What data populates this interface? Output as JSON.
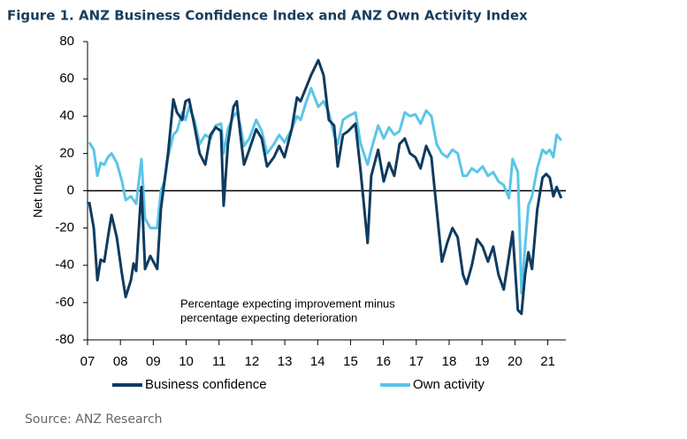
{
  "chart_data": {
    "type": "line",
    "title": "Figure 1.  ANZ Business Confidence Index and ANZ Own Activity Index",
    "ylabel": "Net Index",
    "annotation": [
      "Percentage expecting improvement minus",
      "percentage expecting deterioration"
    ],
    "source": "Source: ANZ Research",
    "x": [
      2007.05,
      2007.19,
      2007.3,
      2007.4,
      2007.51,
      2007.62,
      2007.73,
      2007.89,
      2008.05,
      2008.16,
      2008.32,
      2008.4,
      2008.48,
      2008.64,
      2008.75,
      2008.91,
      2009.12,
      2009.23,
      2009.34,
      2009.45,
      2009.61,
      2009.72,
      2009.88,
      2009.98,
      2010.09,
      2010.25,
      2010.41,
      2010.58,
      2010.74,
      2010.9,
      2011.06,
      2011.14,
      2011.27,
      2011.44,
      2011.54,
      2011.65,
      2011.76,
      2011.92,
      2012.13,
      2012.3,
      2012.46,
      2012.67,
      2012.83,
      2012.99,
      2013.21,
      2013.37,
      2013.48,
      2013.64,
      2013.8,
      2014.02,
      2014.18,
      2014.34,
      2014.5,
      2014.61,
      2014.77,
      2014.93,
      2015.15,
      2015.31,
      2015.52,
      2015.63,
      2015.84,
      2016.01,
      2016.17,
      2016.33,
      2016.49,
      2016.65,
      2016.81,
      2016.97,
      2017.13,
      2017.3,
      2017.46,
      2017.62,
      2017.78,
      2017.94,
      2018.1,
      2018.26,
      2018.42,
      2018.53,
      2018.69,
      2018.85,
      2019.02,
      2019.18,
      2019.34,
      2019.5,
      2019.66,
      2019.82,
      2019.93,
      2020.09,
      2020.2,
      2020.31,
      2020.41,
      2020.52,
      2020.68,
      2020.84,
      2020.95,
      2021.06,
      2021.17,
      2021.27,
      2021.41
    ],
    "series": [
      {
        "name": "Business confidence",
        "color": "#0f3b5f",
        "values": [
          -6,
          -20,
          -48,
          -37,
          -38,
          -25,
          -13,
          -25,
          -45,
          -57,
          -48,
          -39,
          -43,
          2,
          -42,
          -35,
          -42,
          -10,
          5,
          20,
          49,
          42,
          38,
          48,
          49,
          35,
          20,
          14,
          30,
          34,
          32,
          -8,
          25,
          45,
          48,
          30,
          14,
          22,
          33,
          28,
          13,
          18,
          24,
          18,
          33,
          50,
          48,
          55,
          62,
          70,
          62,
          38,
          35,
          13,
          30,
          32,
          36,
          10,
          -28,
          8,
          22,
          5,
          15,
          8,
          25,
          28,
          20,
          18,
          12,
          24,
          18,
          -10,
          -38,
          -28,
          -20,
          -25,
          -45,
          -50,
          -40,
          -26,
          -30,
          -38,
          -30,
          -45,
          -53,
          -35,
          -22,
          -64,
          -66,
          -45,
          -33,
          -42,
          -10,
          7,
          9,
          7,
          -3,
          2,
          -4
        ]
      },
      {
        "name": "Own activity",
        "color": "#5bc5e8",
        "values": [
          26,
          22,
          8,
          15,
          14,
          18,
          20,
          15,
          5,
          -5,
          -3,
          -5,
          -7,
          17,
          -15,
          -20,
          -20,
          0,
          5,
          18,
          30,
          32,
          42,
          38,
          45,
          38,
          25,
          30,
          28,
          35,
          36,
          20,
          33,
          40,
          42,
          35,
          24,
          28,
          38,
          32,
          20,
          25,
          30,
          26,
          33,
          40,
          38,
          47,
          55,
          45,
          48,
          42,
          30,
          25,
          38,
          40,
          42,
          25,
          14,
          22,
          35,
          28,
          34,
          30,
          32,
          42,
          40,
          41,
          36,
          43,
          40,
          25,
          20,
          18,
          22,
          20,
          8,
          8,
          12,
          10,
          13,
          8,
          10,
          5,
          3,
          -4,
          17,
          10,
          -55,
          -30,
          -8,
          -3,
          12,
          22,
          20,
          22,
          18,
          30,
          27
        ]
      }
    ],
    "xlim": [
      2007,
      2021.55
    ],
    "xticks": [
      {
        "value": 2007,
        "label": "07"
      },
      {
        "value": 2008,
        "label": "08"
      },
      {
        "value": 2009,
        "label": "09"
      },
      {
        "value": 2010,
        "label": "10"
      },
      {
        "value": 2011,
        "label": "11"
      },
      {
        "value": 2012,
        "label": "12"
      },
      {
        "value": 2013,
        "label": "13"
      },
      {
        "value": 2014,
        "label": "14"
      },
      {
        "value": 2015,
        "label": "15"
      },
      {
        "value": 2016,
        "label": "16"
      },
      {
        "value": 2017,
        "label": "17"
      },
      {
        "value": 2018,
        "label": "18"
      },
      {
        "value": 2019,
        "label": "19"
      },
      {
        "value": 2020,
        "label": "20"
      },
      {
        "value": 2021,
        "label": "21"
      }
    ],
    "ylim": [
      -80,
      80
    ],
    "yticks": [
      -80,
      -60,
      -40,
      -20,
      0,
      20,
      40,
      60,
      80
    ]
  }
}
